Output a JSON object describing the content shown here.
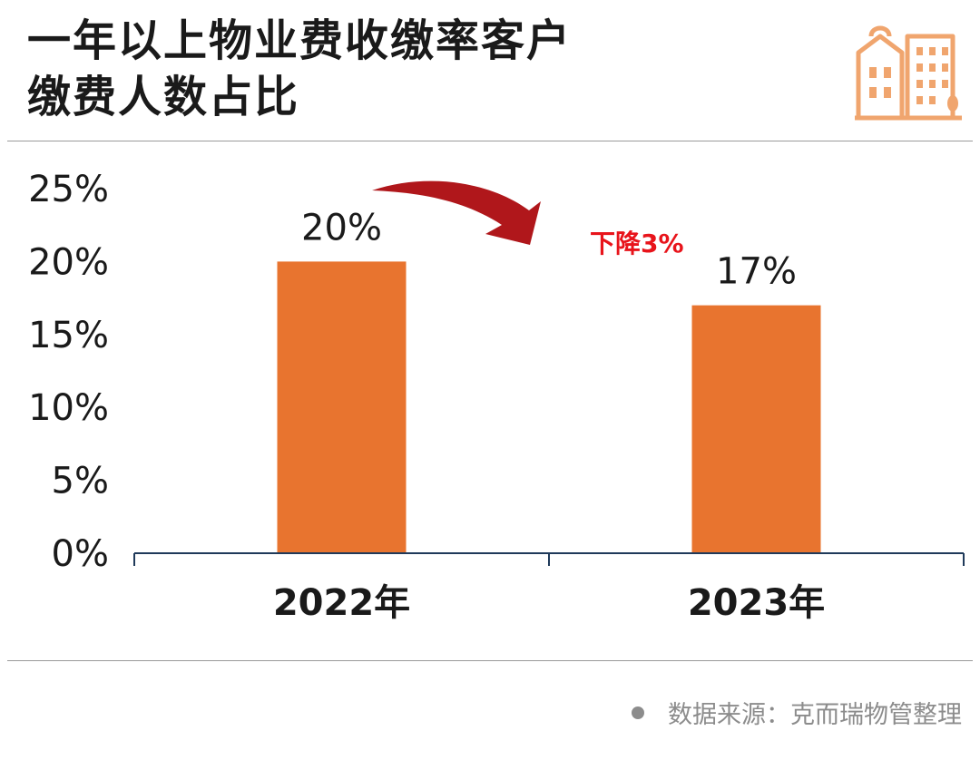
{
  "title": {
    "line1": "一年以上物业费收缴率客户",
    "line2": "缴费人数占比"
  },
  "source_text": "数据来源：克而瑞物管整理",
  "colors": {
    "bar": "#e8742f",
    "annotation": "#e8141b",
    "arrow": "#b0171b",
    "logo": "#f0a56e"
  },
  "chart_data": {
    "type": "bar",
    "title": "一年以上物业费收缴率客户缴费人数占比",
    "categories": [
      "2022年",
      "2023年"
    ],
    "values": [
      20,
      17
    ],
    "value_labels": [
      "20%",
      "17%"
    ],
    "ylim": [
      0,
      25
    ],
    "yticks": [
      0,
      5,
      10,
      15,
      20,
      25
    ],
    "ytick_labels": [
      "0%",
      "5%",
      "10%",
      "15%",
      "20%",
      "25%"
    ],
    "grid": false,
    "annotation": "下降3%"
  }
}
